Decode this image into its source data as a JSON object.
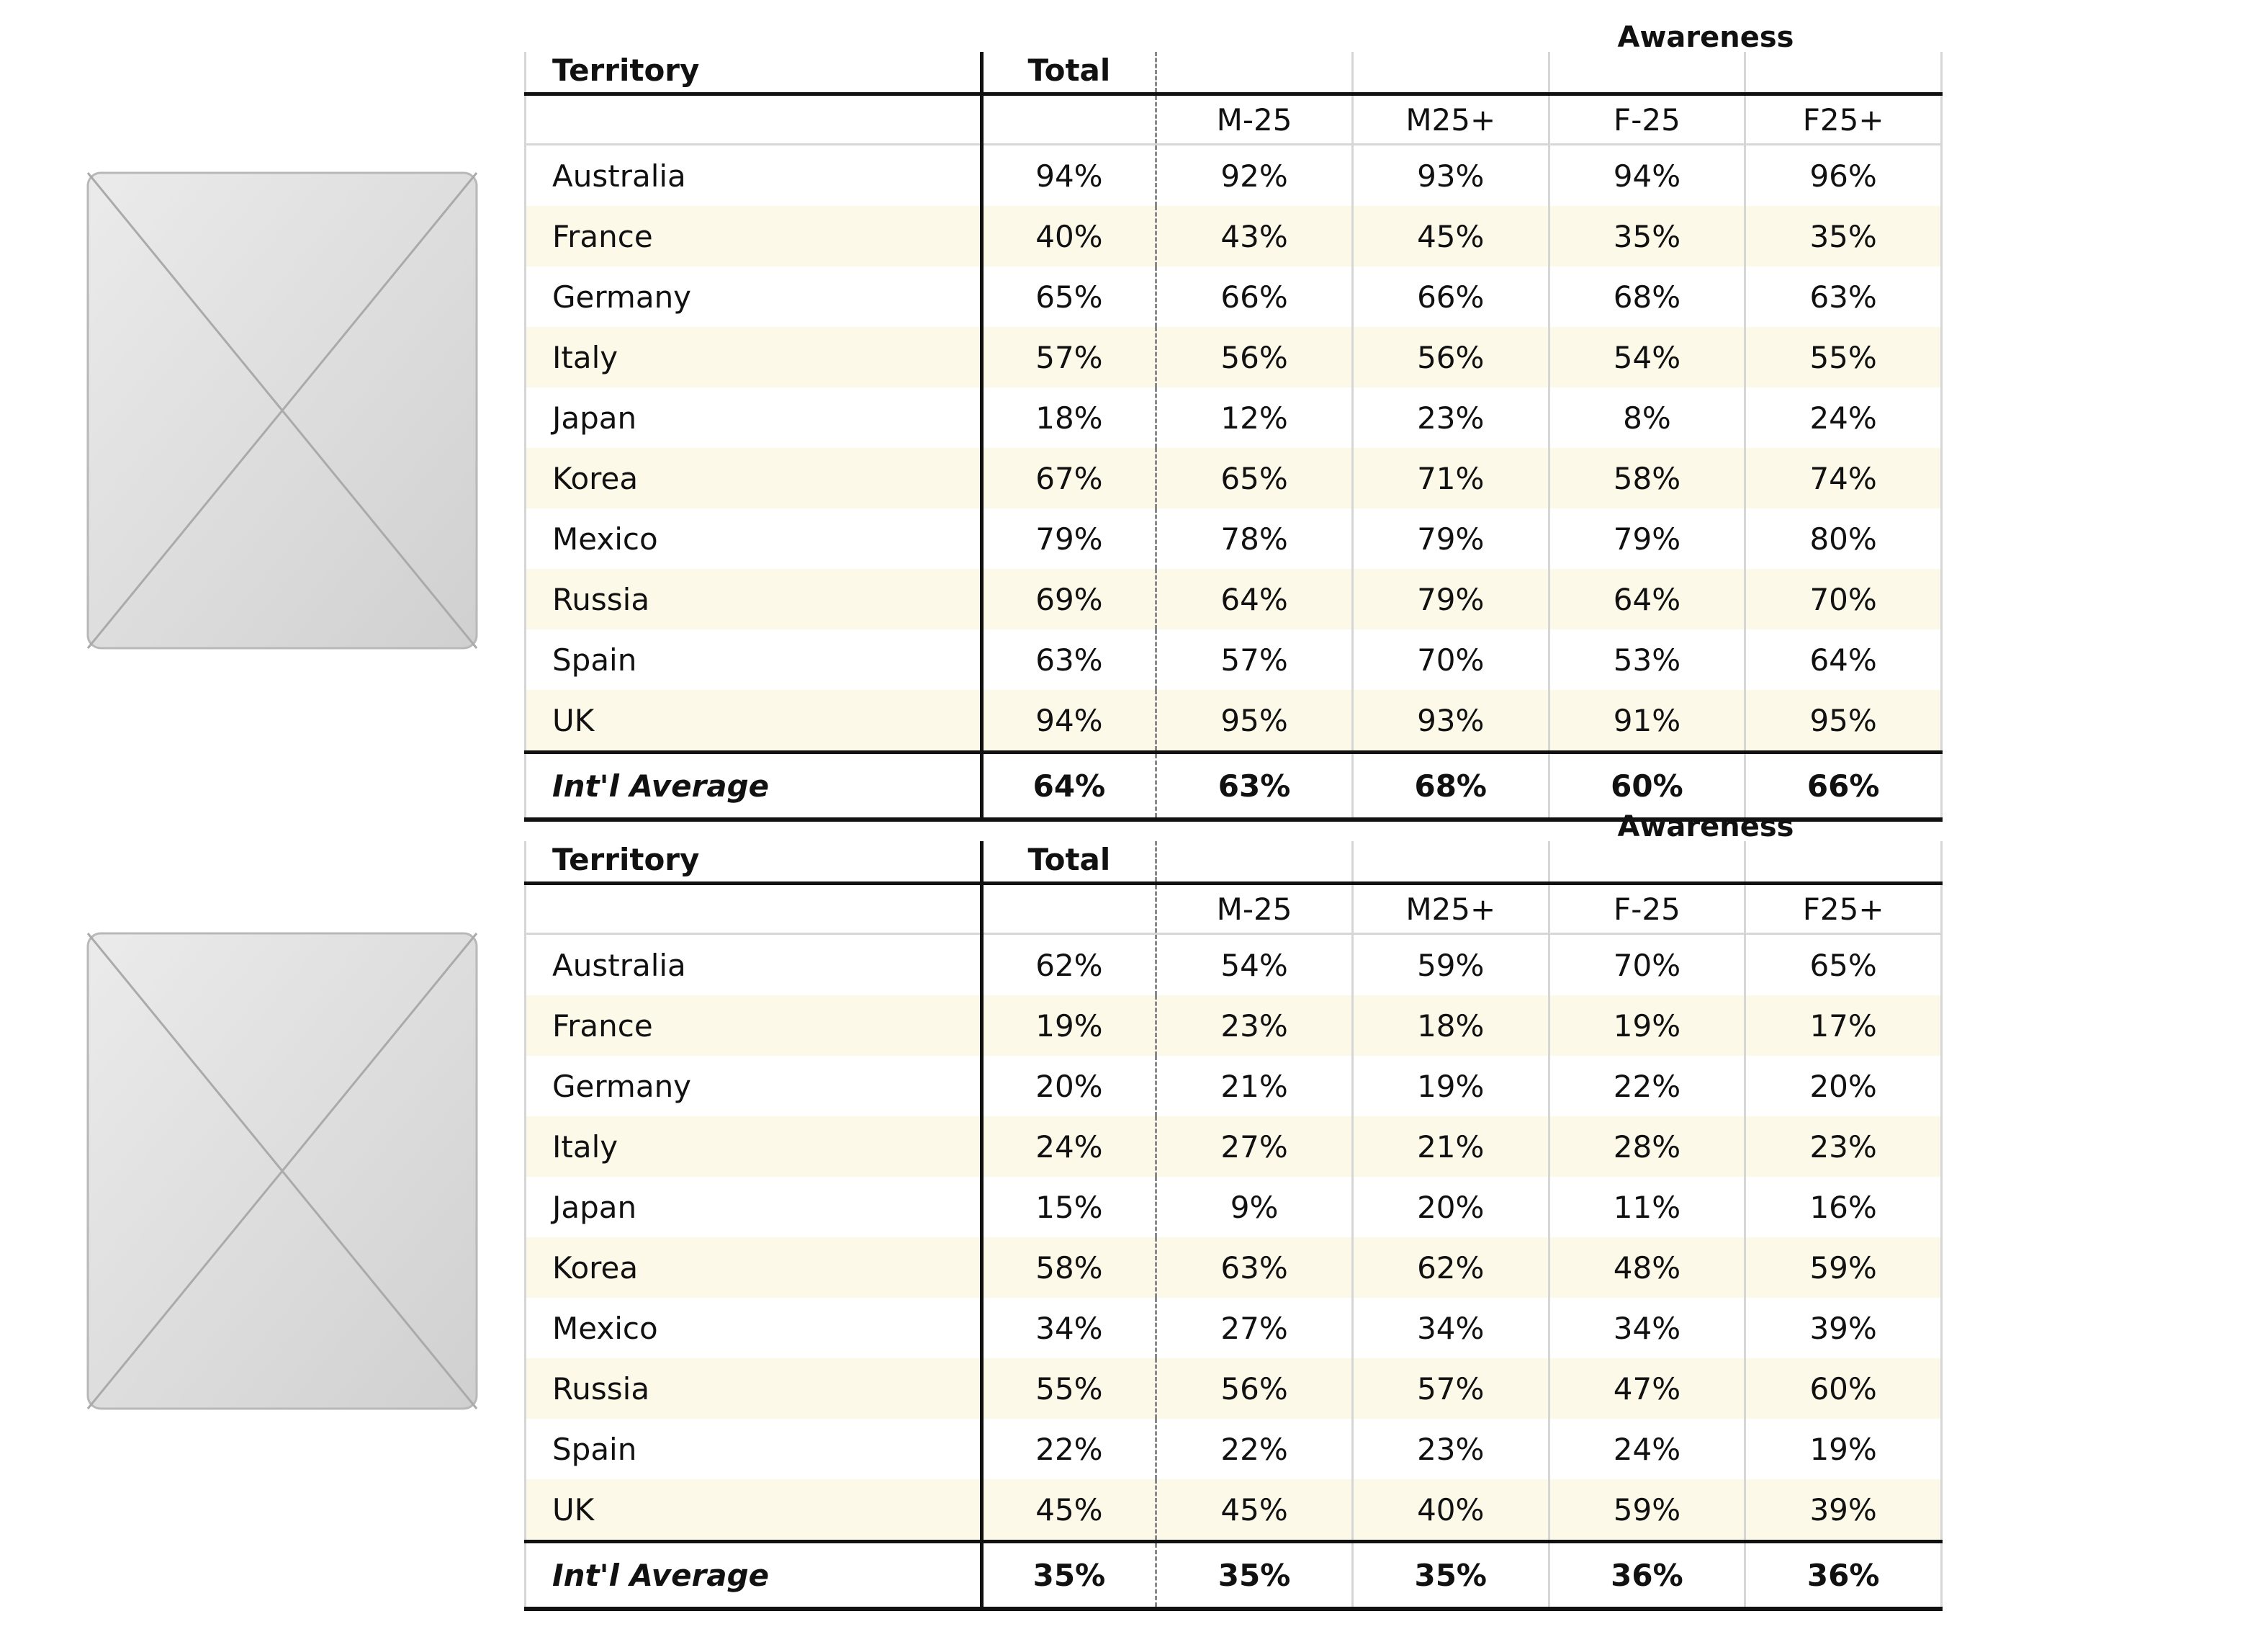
{
  "placeholders": [
    {
      "icon": "image-placeholder-icon"
    },
    {
      "icon": "image-placeholder-icon"
    }
  ],
  "tables": [
    {
      "group_label": "Awareness",
      "headers": {
        "territory": "Territory",
        "total": "Total",
        "segments": [
          "M-25",
          "M25+",
          "F-25",
          "F25+"
        ]
      },
      "rows": [
        {
          "territory": "Australia",
          "total": "94%",
          "values": [
            "92%",
            "93%",
            "94%",
            "96%"
          ]
        },
        {
          "territory": "France",
          "total": "40%",
          "values": [
            "43%",
            "45%",
            "35%",
            "35%"
          ]
        },
        {
          "territory": "Germany",
          "total": "65%",
          "values": [
            "66%",
            "66%",
            "68%",
            "63%"
          ]
        },
        {
          "territory": "Italy",
          "total": "57%",
          "values": [
            "56%",
            "56%",
            "54%",
            "55%"
          ]
        },
        {
          "territory": "Japan",
          "total": "18%",
          "values": [
            "12%",
            "23%",
            "8%",
            "24%"
          ]
        },
        {
          "territory": "Korea",
          "total": "67%",
          "values": [
            "65%",
            "71%",
            "58%",
            "74%"
          ]
        },
        {
          "territory": "Mexico",
          "total": "79%",
          "values": [
            "78%",
            "79%",
            "79%",
            "80%"
          ]
        },
        {
          "territory": "Russia",
          "total": "69%",
          "values": [
            "64%",
            "79%",
            "64%",
            "70%"
          ]
        },
        {
          "territory": "Spain",
          "total": "63%",
          "values": [
            "57%",
            "70%",
            "53%",
            "64%"
          ]
        },
        {
          "territory": "UK",
          "total": "94%",
          "values": [
            "95%",
            "93%",
            "91%",
            "95%"
          ]
        }
      ],
      "average": {
        "label": "Int'l Average",
        "total": "64%",
        "values": [
          "63%",
          "68%",
          "60%",
          "66%"
        ]
      }
    },
    {
      "group_label": "Awareness",
      "headers": {
        "territory": "Territory",
        "total": "Total",
        "segments": [
          "M-25",
          "M25+",
          "F-25",
          "F25+"
        ]
      },
      "rows": [
        {
          "territory": "Australia",
          "total": "62%",
          "values": [
            "54%",
            "59%",
            "70%",
            "65%"
          ]
        },
        {
          "territory": "France",
          "total": "19%",
          "values": [
            "23%",
            "18%",
            "19%",
            "17%"
          ]
        },
        {
          "territory": "Germany",
          "total": "20%",
          "values": [
            "21%",
            "19%",
            "22%",
            "20%"
          ]
        },
        {
          "territory": "Italy",
          "total": "24%",
          "values": [
            "27%",
            "21%",
            "28%",
            "23%"
          ]
        },
        {
          "territory": "Japan",
          "total": "15%",
          "values": [
            "9%",
            "20%",
            "11%",
            "16%"
          ]
        },
        {
          "territory": "Korea",
          "total": "58%",
          "values": [
            "63%",
            "62%",
            "48%",
            "59%"
          ]
        },
        {
          "territory": "Mexico",
          "total": "34%",
          "values": [
            "27%",
            "34%",
            "34%",
            "39%"
          ]
        },
        {
          "territory": "Russia",
          "total": "55%",
          "values": [
            "56%",
            "57%",
            "47%",
            "60%"
          ]
        },
        {
          "territory": "Spain",
          "total": "22%",
          "values": [
            "22%",
            "23%",
            "24%",
            "19%"
          ]
        },
        {
          "territory": "UK",
          "total": "45%",
          "values": [
            "45%",
            "40%",
            "59%",
            "39%"
          ]
        }
      ],
      "average": {
        "label": "Int'l Average",
        "total": "35%",
        "values": [
          "35%",
          "35%",
          "36%",
          "36%"
        ]
      }
    }
  ]
}
